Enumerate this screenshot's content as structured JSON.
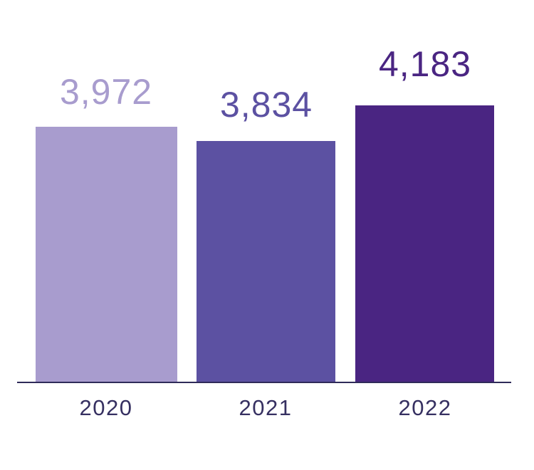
{
  "chart_data": {
    "type": "bar",
    "title": "",
    "xlabel": "",
    "ylabel": "",
    "categories": [
      "2020",
      "2021",
      "2022"
    ],
    "values": [
      3972,
      3834,
      4183
    ],
    "value_labels": [
      "3,972",
      "3,834",
      "4,183"
    ],
    "bar_colors": [
      "#a89cce",
      "#5c51a2",
      "#4a2582"
    ],
    "value_label_colors": [
      "#a89cce",
      "#5c51a2",
      "#4a2582"
    ],
    "category_label_color": "#363061",
    "axis_line_color": "#2f2b59",
    "background_color": "#ffffff",
    "grid": false,
    "legend": false,
    "layout_hints": {
      "orientation": "vertical",
      "baseline_axis": "x-axis only, no ticks",
      "value_labels_position": "above bars",
      "ylim_implied": [
        0,
        4500
      ]
    }
  }
}
